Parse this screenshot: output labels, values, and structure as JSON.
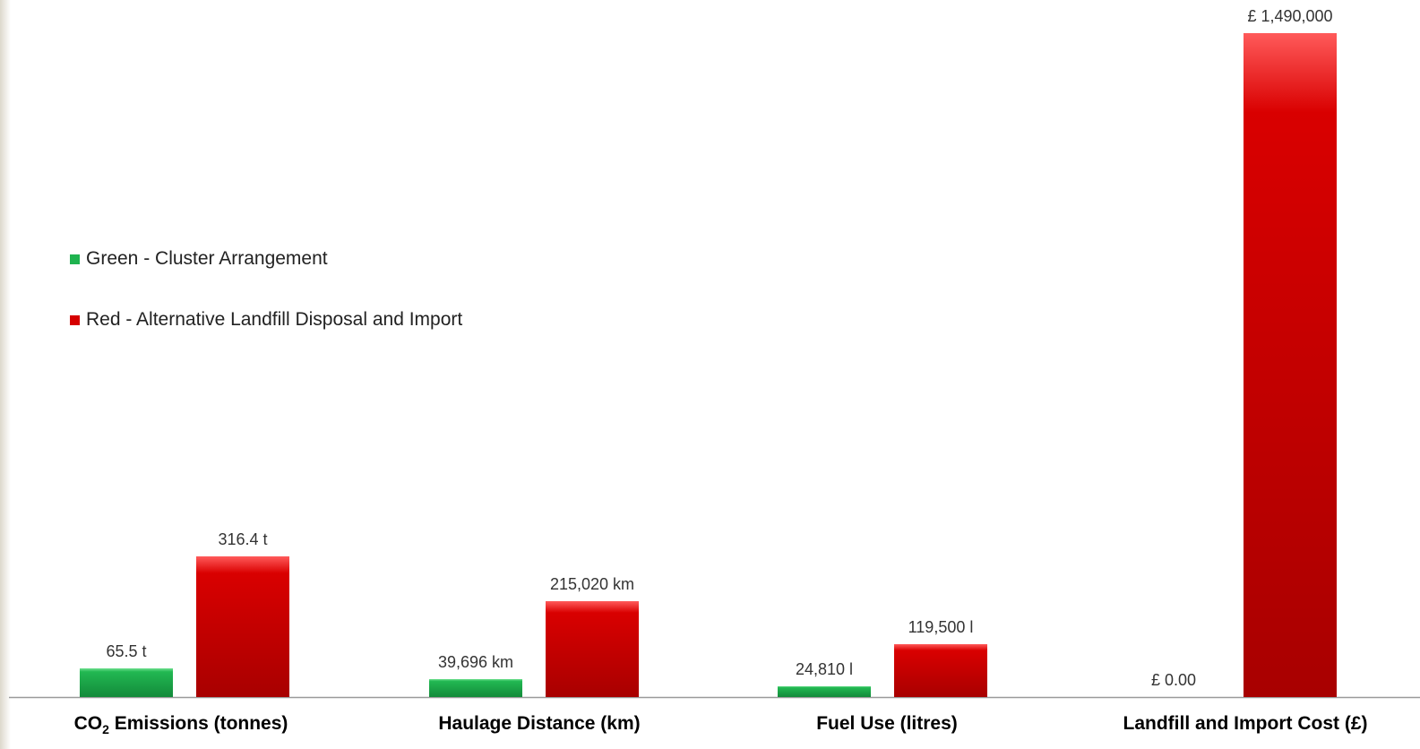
{
  "chart_data": {
    "type": "bar",
    "categories": [
      {
        "pre": "CO",
        "sub": "2",
        "post": " Emissions (tonnes)"
      },
      {
        "pre": "Haulage Distance (km)",
        "sub": "",
        "post": ""
      },
      {
        "pre": "Fuel Use (litres)",
        "sub": "",
        "post": ""
      },
      {
        "pre": "Landfill and Import Cost (£)",
        "sub": "",
        "post": ""
      }
    ],
    "series": [
      {
        "name": "Green - Cluster Arrangement",
        "color": "#1fb34f",
        "bar_fraction_of_category_max": [
          0.207,
          0.185,
          0.208,
          0.0
        ],
        "value_labels": [
          "65.5 t",
          "39,696 km",
          "24,810 l",
          "£ 0.00"
        ]
      },
      {
        "name": "Red - Alternative Landfill Disposal and Import",
        "color": "#d60000",
        "bar_fraction_of_category_max": [
          1.0,
          1.0,
          1.0,
          1.0
        ],
        "value_labels": [
          "316.4 t",
          "215,020 km",
          "119,500 l",
          "£ 1,490,000"
        ]
      }
    ],
    "values": [
      [
        65.5,
        39696,
        24810,
        0
      ],
      [
        316.4,
        215020,
        119500,
        1490000
      ]
    ],
    "category_scale_heights": [
      157,
      107,
      59,
      741
    ],
    "legend_position": "left"
  }
}
